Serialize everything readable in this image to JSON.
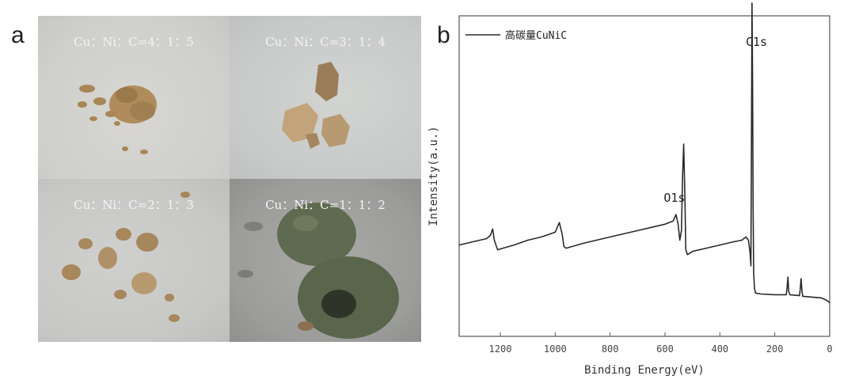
{
  "panels": {
    "a_label": "a",
    "b_label": "b"
  },
  "photos": [
    {
      "caption": "Cu：Ni：C=4：1：5"
    },
    {
      "caption": "Cu：Ni：C=3：1：4"
    },
    {
      "caption": "Cu：Ni：C=2：1：3"
    },
    {
      "caption": "Cu：Ni：C=1：1：2"
    }
  ],
  "colors": {
    "line": "#2a2a2a",
    "axis": "#555555",
    "sample_gold": "#b08a5a",
    "sample_dark": "#5c6a4e"
  },
  "chart_data": {
    "type": "line",
    "title": "",
    "xlabel": "Binding Energy(eV)",
    "ylabel": "Intensity(a.u.)",
    "xlim": [
      1350,
      0
    ],
    "x_reversed": true,
    "xticks": [
      1200,
      1000,
      800,
      600,
      400,
      200,
      0
    ],
    "xtick_labels": [
      "1200",
      "1000",
      "800",
      "600",
      "400",
      "200",
      "0"
    ],
    "ylim": [
      0,
      100
    ],
    "y_ticks_shown": false,
    "grid": false,
    "legend": {
      "position": "top-left",
      "entries": [
        "高碳量CuNiC"
      ]
    },
    "series": [
      {
        "name": "高碳量CuNiC",
        "x": [
          1350,
          1300,
          1250,
          1236,
          1228,
          1222,
          1210,
          1150,
          1100,
          1050,
          1000,
          985,
          975,
          968,
          960,
          900,
          850,
          800,
          750,
          700,
          650,
          600,
          570,
          560,
          552,
          546,
          540,
          536,
          532,
          528,
          524,
          518,
          500,
          450,
          400,
          350,
          320,
          305,
          296,
          290,
          287,
          285,
          283,
          281,
          279,
          277,
          274,
          270,
          250,
          200,
          158,
          155,
          152,
          149,
          145,
          110,
          107,
          104,
          101,
          98,
          60,
          30,
          10,
          0
        ],
        "y": [
          28.5,
          29.5,
          30.5,
          31.5,
          33.5,
          30,
          27,
          28.5,
          30,
          31,
          32.5,
          35.5,
          32,
          28,
          27.5,
          29,
          30,
          31,
          32,
          33,
          34,
          35,
          36,
          38,
          35,
          30,
          33,
          50,
          60,
          45,
          27,
          25.5,
          26.5,
          27.5,
          28.5,
          29.5,
          30,
          31,
          30,
          26,
          22,
          60,
          104,
          80,
          40,
          20,
          15,
          13.5,
          13.2,
          13,
          13,
          15.5,
          18.5,
          14,
          13,
          12.7,
          15,
          18,
          14,
          12.5,
          12.2,
          12,
          11.2,
          10.5
        ]
      }
    ],
    "annotations": [
      {
        "text": "O1s",
        "x": 531
      },
      {
        "text": "C1s",
        "x": 284
      }
    ]
  }
}
